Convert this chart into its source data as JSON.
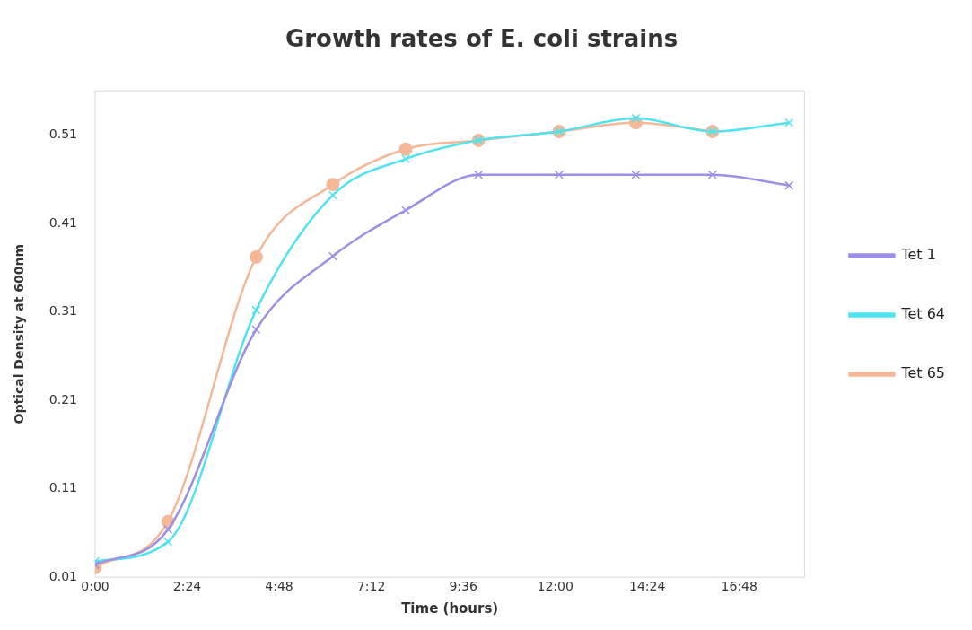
{
  "chart_data": {
    "type": "line",
    "title": "Growth rates of E. coli strains",
    "xlabel": "Time (hours)",
    "ylabel": "Optical Density at 600nm",
    "xlim": [
      0,
      18.5
    ],
    "xticks": [
      {
        "value": 0,
        "label": "0:00"
      },
      {
        "value": 2.4,
        "label": "2:24"
      },
      {
        "value": 4.8,
        "label": "4:48"
      },
      {
        "value": 7.2,
        "label": "7:12"
      },
      {
        "value": 9.6,
        "label": "9:36"
      },
      {
        "value": 12,
        "label": "12:00"
      },
      {
        "value": 14.4,
        "label": "14:24"
      },
      {
        "value": 16.8,
        "label": "16:48"
      }
    ],
    "ylim": [
      0.01,
      0.56
    ],
    "yticks": [
      0.01,
      0.11,
      0.21,
      0.31,
      0.41,
      0.51
    ],
    "grid": false,
    "legend": "right",
    "x": [
      0,
      1.9,
      4.2,
      6.2,
      8.1,
      10.0,
      12.1,
      14.1,
      16.1,
      18.1
    ],
    "series": [
      {
        "name": "Tet 1",
        "color": "#9b8fe6",
        "marker": "cross",
        "values": [
          0.024,
          0.064,
          0.29,
          0.373,
          0.425,
          0.465,
          0.465,
          0.465,
          0.465,
          0.453
        ]
      },
      {
        "name": "Tet 64",
        "color": "#4fe3f0",
        "marker": "cross",
        "values": [
          0.028,
          0.05,
          0.312,
          0.442,
          0.483,
          0.504,
          0.514,
          0.529,
          0.514,
          0.524
        ]
      },
      {
        "name": "Tet 65",
        "color": "#f4b898",
        "marker": "circle",
        "values": [
          0.021,
          0.073,
          0.372,
          0.454,
          0.494,
          0.504,
          0.514,
          0.524,
          0.514,
          null
        ]
      }
    ]
  }
}
